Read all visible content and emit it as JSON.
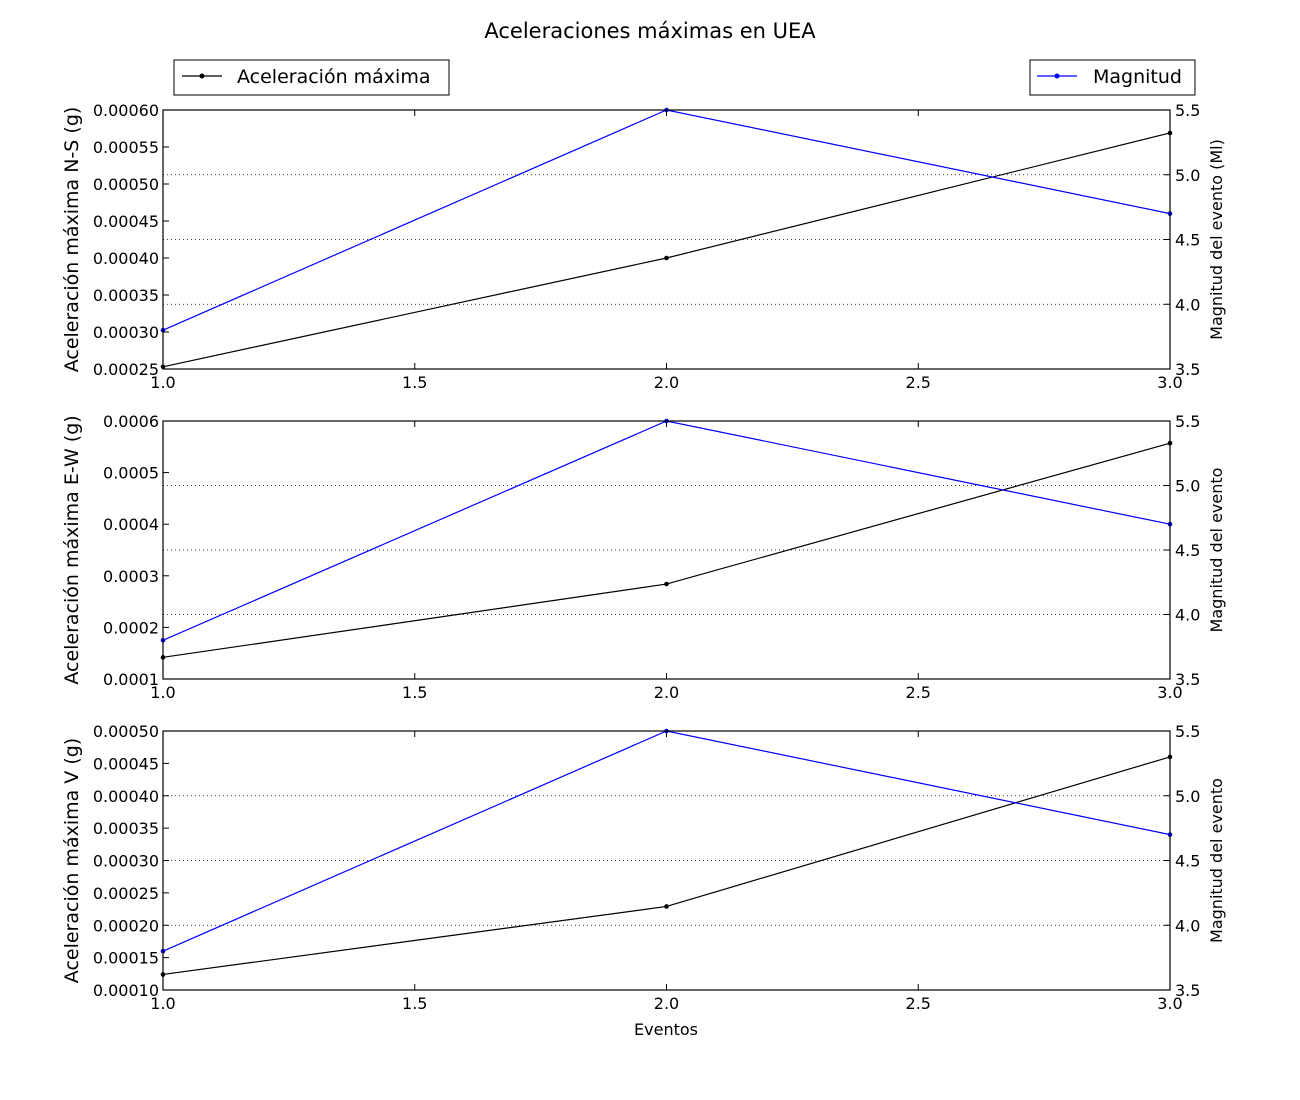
{
  "figure": {
    "title": "Aceleraciones máximas en UEA",
    "xlabel": "Eventos"
  },
  "legend": {
    "left": {
      "label": "Aceleración máxima",
      "color": "#000000"
    },
    "right": {
      "label": "Magnitud",
      "color": "#0000ff"
    }
  },
  "chart_data": [
    {
      "type": "line",
      "x": [
        1.0,
        2.0,
        3.0
      ],
      "xlim": [
        1.0,
        3.0
      ],
      "xticks": [
        "1.0",
        "1.5",
        "2.0",
        "2.5",
        "3.0"
      ],
      "ylabel": "Aceleración máxima N-S (g)",
      "ylim": [
        0.00025,
        0.0006
      ],
      "yticks": [
        "0.00025",
        "0.00030",
        "0.00035",
        "0.00040",
        "0.00045",
        "0.00050",
        "0.00055",
        "0.00060"
      ],
      "y2label": "Magnitud del evento (Ml)",
      "y2lim": [
        3.5,
        5.5
      ],
      "y2ticks": [
        "3.5",
        "4.0",
        "4.5",
        "5.0",
        "5.5"
      ],
      "grid": "dotted-horizontal-secondary",
      "series": [
        {
          "name": "Aceleración máxima",
          "axis": "left",
          "color": "#000000",
          "values": [
            0.000253,
            0.0004,
            0.000569
          ]
        },
        {
          "name": "Magnitud",
          "axis": "right",
          "color": "#0000ff",
          "values": [
            3.8,
            5.5,
            4.7
          ]
        }
      ]
    },
    {
      "type": "line",
      "x": [
        1.0,
        2.0,
        3.0
      ],
      "xlim": [
        1.0,
        3.0
      ],
      "xticks": [
        "1.0",
        "1.5",
        "2.0",
        "2.5",
        "3.0"
      ],
      "ylabel": "Aceleración máxima E-W (g)",
      "ylim": [
        0.0001,
        0.0006
      ],
      "yticks": [
        "0.0001",
        "0.0002",
        "0.0003",
        "0.0004",
        "0.0005",
        "0.0006"
      ],
      "y2label": "Magnitud del evento",
      "y2lim": [
        3.5,
        5.5
      ],
      "y2ticks": [
        "3.5",
        "4.0",
        "4.5",
        "5.0",
        "5.5"
      ],
      "grid": "dotted-horizontal-secondary",
      "series": [
        {
          "name": "Aceleración máxima",
          "axis": "left",
          "color": "#000000",
          "values": [
            0.000142,
            0.000284,
            0.000557
          ]
        },
        {
          "name": "Magnitud",
          "axis": "right",
          "color": "#0000ff",
          "values": [
            3.8,
            5.5,
            4.7
          ]
        }
      ]
    },
    {
      "type": "line",
      "x": [
        1.0,
        2.0,
        3.0
      ],
      "xlim": [
        1.0,
        3.0
      ],
      "xticks": [
        "1.0",
        "1.5",
        "2.0",
        "2.5",
        "3.0"
      ],
      "ylabel": "Aceleración máxima V (g)",
      "ylim": [
        0.0001,
        0.0005
      ],
      "yticks": [
        "0.00010",
        "0.00015",
        "0.00020",
        "0.00025",
        "0.00030",
        "0.00035",
        "0.00040",
        "0.00045",
        "0.00050"
      ],
      "y2label": "Magnitud del evento",
      "y2lim": [
        3.5,
        5.5
      ],
      "y2ticks": [
        "3.5",
        "4.0",
        "4.5",
        "5.0",
        "5.5"
      ],
      "grid": "dotted-horizontal-secondary",
      "series": [
        {
          "name": "Aceleración máxima",
          "axis": "left",
          "color": "#000000",
          "values": [
            0.000124,
            0.000229,
            0.00046
          ]
        },
        {
          "name": "Magnitud",
          "axis": "right",
          "color": "#0000ff",
          "values": [
            3.8,
            5.5,
            4.7
          ]
        }
      ]
    }
  ]
}
